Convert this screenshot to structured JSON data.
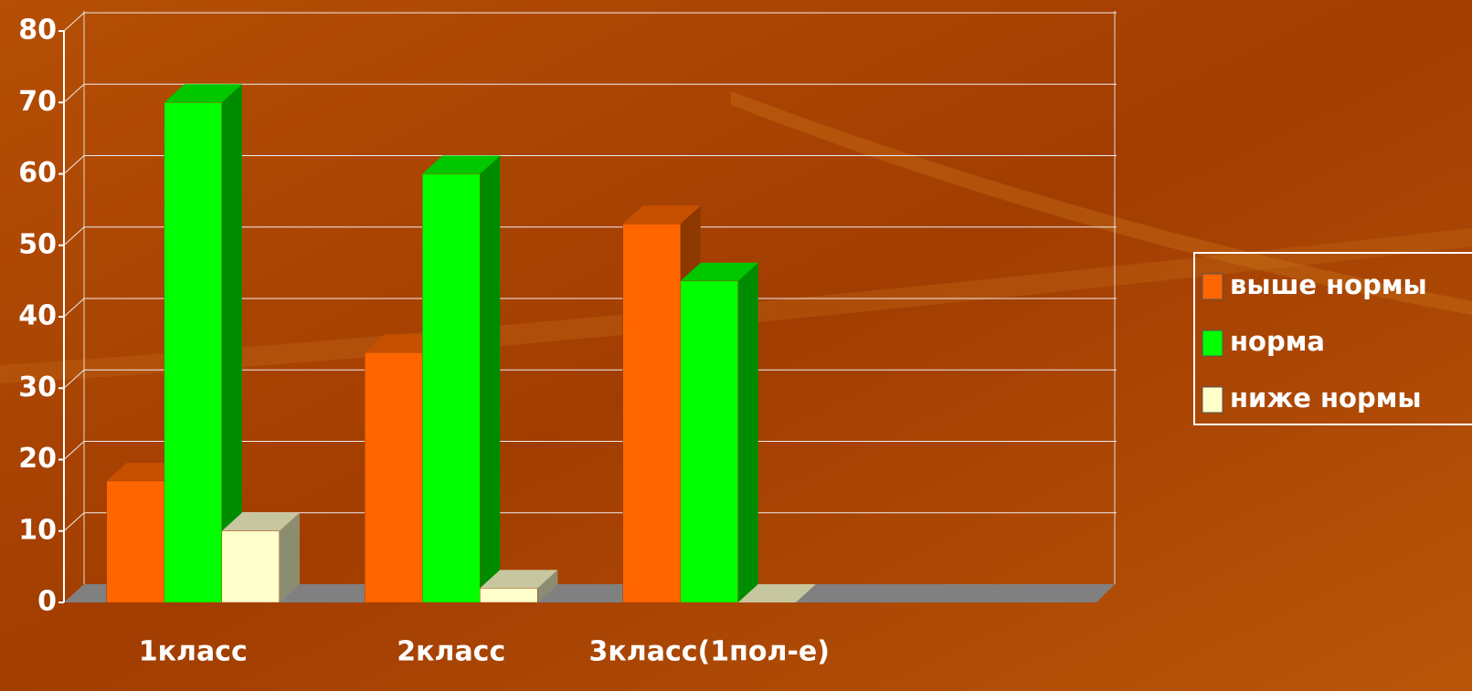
{
  "chart_data": {
    "type": "bar3d",
    "categories": [
      "1класс",
      "2класс",
      "3класс(1пол-е)"
    ],
    "series": [
      {
        "name": "выше нормы",
        "color": "#ff6600",
        "values": [
          17,
          35,
          53
        ]
      },
      {
        "name": "норма",
        "color": "#00ff00",
        "values": [
          70,
          60,
          45
        ]
      },
      {
        "name": "ниже нормы",
        "color": "#ffffcc",
        "values": [
          10,
          2,
          0
        ]
      }
    ],
    "ylim": [
      0,
      80
    ],
    "yticks": [
      0,
      10,
      20,
      30,
      40,
      50,
      60,
      70,
      80
    ],
    "grid": true,
    "legend": "right"
  }
}
